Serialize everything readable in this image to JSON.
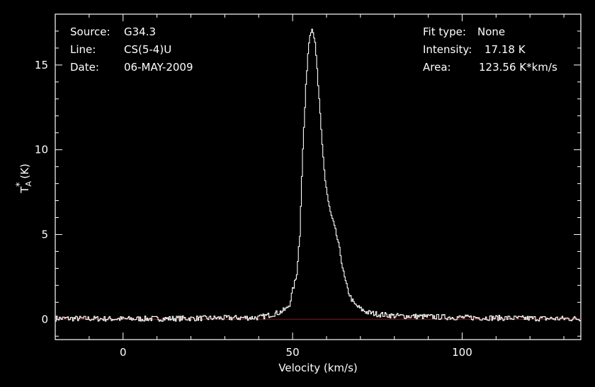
{
  "info": {
    "source_label": "Source:",
    "source_value": "G34.3",
    "line_label": "Line:",
    "line_value": "CS(5-4)U",
    "date_label": "Date:",
    "date_value": "06-MAY-2009",
    "fit_label": "Fit type:",
    "fit_value": "None",
    "intensity_label": "Intensity:",
    "intensity_value": "17.18 K",
    "area_label": "Area:",
    "area_value": "123.56 K*km/s"
  },
  "colors": {
    "background": "#000000",
    "axes": "#ffffff",
    "spectrum": "#ffffff",
    "baseline": "#cc0000"
  },
  "chart_data": {
    "type": "line",
    "xlabel": "Velocity (km/s)",
    "ylabel_main": "T",
    "ylabel_sup": "*",
    "ylabel_sub": "A",
    "ylabel_unit": " (K)",
    "xlim": [
      -20,
      135
    ],
    "ylim": [
      -1.2,
      18
    ],
    "xticks": [
      0,
      50,
      100
    ],
    "yticks": [
      0,
      5,
      10,
      15
    ],
    "grid": false,
    "baseline_value": 0,
    "series": [
      {
        "x": [
          -20,
          0,
          20,
          40,
          44,
          46,
          48,
          49,
          50,
          51,
          52,
          52.5,
          53,
          53.5,
          54,
          54.5,
          55,
          55.5,
          56,
          56.5,
          57,
          57.5,
          58,
          58.5,
          59,
          59.5,
          60,
          60.5,
          61,
          62,
          63,
          64,
          65,
          66,
          67,
          68,
          70,
          72,
          75,
          80,
          90,
          100,
          110,
          120,
          135
        ],
        "y": [
          0.05,
          0.02,
          0.05,
          0.1,
          0.3,
          0.4,
          0.6,
          0.9,
          1.8,
          2.5,
          5.0,
          8.0,
          10.5,
          12.5,
          14.5,
          16.0,
          16.9,
          17.18,
          17.0,
          16.2,
          15.0,
          13.5,
          12.0,
          10.5,
          9.3,
          8.2,
          7.5,
          6.8,
          6.3,
          5.6,
          4.8,
          3.8,
          2.6,
          1.8,
          1.3,
          0.9,
          0.6,
          0.4,
          0.3,
          0.2,
          0.15,
          0.1,
          0.08,
          0.05,
          0.03
        ]
      }
    ]
  }
}
